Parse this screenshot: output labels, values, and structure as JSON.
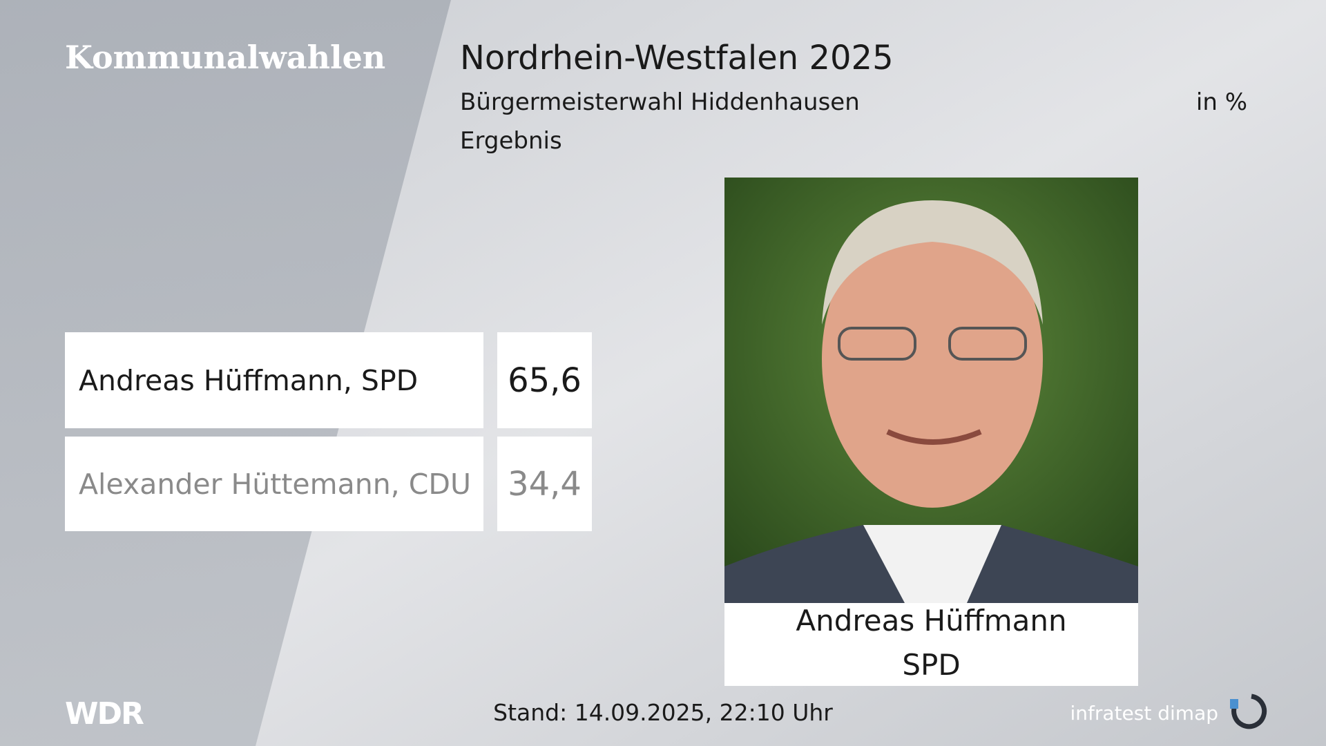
{
  "header": {
    "category": "Kommunalwahlen",
    "title": "Nordrhein-Westfalen 2025",
    "subtitle": "Bürgermeisterwahl Hiddenhausen",
    "unit": "in %",
    "label": "Ergebnis"
  },
  "results": {
    "rows": [
      {
        "name": "Andreas Hüffmann, SPD",
        "value": "65,6"
      },
      {
        "name": "Alexander Hüttemann, CDU",
        "value": "34,4"
      }
    ]
  },
  "winner": {
    "name": "Andreas Hüffmann",
    "party": "SPD"
  },
  "footer": {
    "logo": "WDR",
    "stand": "Stand: 14.09.2025, 22:10 Uhr",
    "source": "infratest dimap"
  }
}
